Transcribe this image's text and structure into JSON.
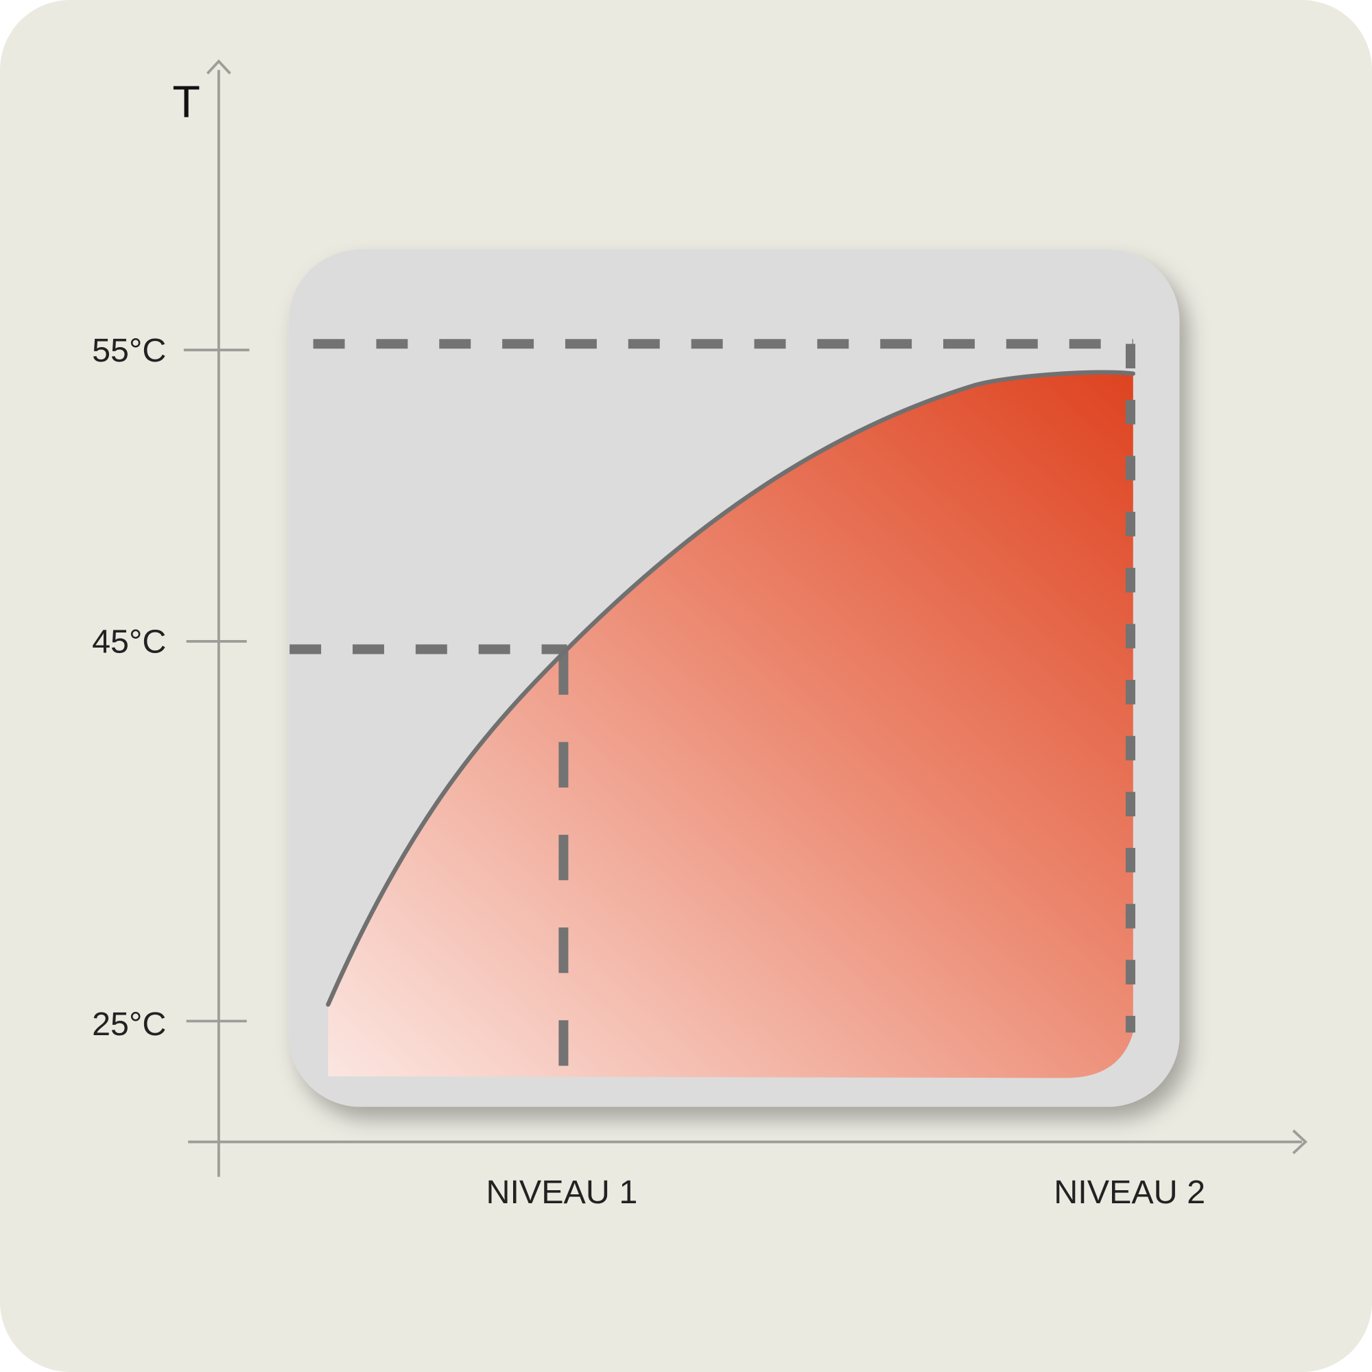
{
  "axis": {
    "y_label": "T",
    "y_ticks": [
      "55°C",
      "45°C",
      "25°C"
    ],
    "x_labels": [
      "NIVEAU 1",
      "NIVEAU 2"
    ]
  }
}
